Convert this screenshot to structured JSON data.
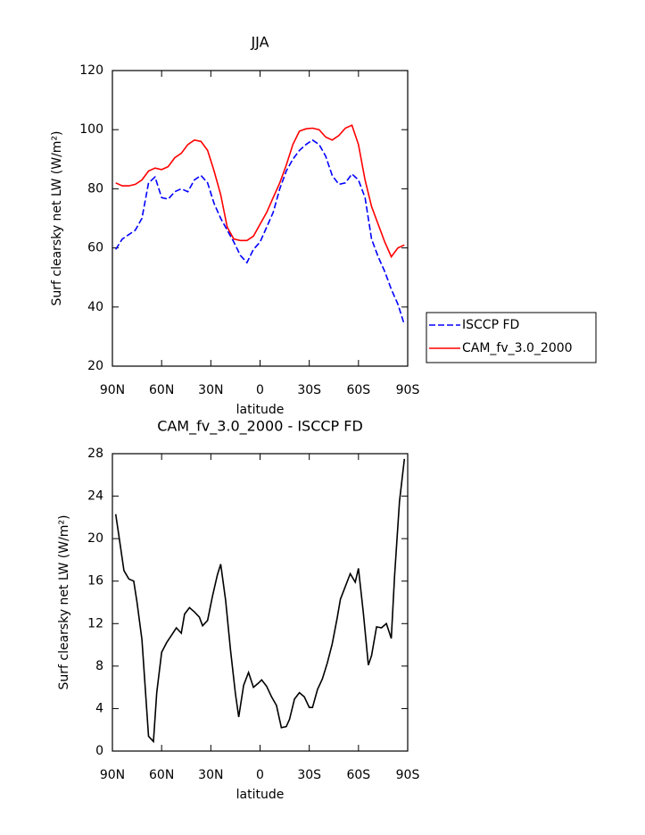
{
  "chart_data": [
    {
      "type": "line",
      "title": "JJA",
      "xlabel": "latitude",
      "ylabel": "Surf clearsky net LW (W/m²)",
      "x": [
        88,
        84,
        80,
        76,
        72,
        68,
        64,
        60,
        56,
        52,
        48,
        44,
        40,
        36,
        32,
        28,
        24,
        20,
        16,
        12,
        8,
        4,
        0,
        -4,
        -8,
        -12,
        -16,
        -20,
        -24,
        -28,
        -32,
        -36,
        -40,
        -44,
        -48,
        -52,
        -56,
        -60,
        -64,
        -68,
        -72,
        -76,
        -80,
        -84,
        -88
      ],
      "series": [
        {
          "name": "ISCCP FD",
          "color": "#0000ff",
          "dash": true,
          "values": [
            59.5,
            63,
            64.5,
            66,
            70,
            82,
            84,
            77,
            76.5,
            79,
            80,
            79,
            83,
            84.5,
            82,
            75,
            70,
            66,
            62,
            57.5,
            55,
            59.5,
            62,
            67,
            72,
            80,
            86,
            90,
            93,
            95,
            96.5,
            95,
            91,
            84.5,
            81.5,
            82,
            85,
            83,
            77,
            63,
            57,
            52,
            46,
            41,
            34
          ]
        },
        {
          "name": "CAM_fv_3.0_2000",
          "color": "#ff0000",
          "dash": false,
          "values": [
            82,
            81,
            81,
            81.5,
            83,
            86,
            87,
            86.5,
            87.5,
            90.5,
            92,
            95,
            96.5,
            96,
            93,
            86,
            78,
            67,
            63,
            62.5,
            62.5,
            64,
            68,
            72,
            77,
            82,
            88,
            95,
            99.5,
            100.3,
            100.5,
            100,
            97.5,
            96.5,
            98,
            100.5,
            101.5,
            95,
            83,
            74,
            68,
            62,
            57,
            60,
            61
          ]
        }
      ],
      "xlim": [
        90,
        -90
      ],
      "xticks": [
        {
          "value": 90,
          "label": "90N"
        },
        {
          "value": 60,
          "label": "60N"
        },
        {
          "value": 30,
          "label": "30N"
        },
        0,
        {
          "value": -30,
          "label": "30S"
        },
        {
          "value": -60,
          "label": "60S"
        },
        {
          "value": -90,
          "label": "90S"
        }
      ],
      "ylim": [
        20,
        120
      ],
      "yticks": [
        20,
        40,
        60,
        80,
        100,
        120
      ],
      "grid": false,
      "legend": "right"
    },
    {
      "type": "line",
      "title": "CAM_fv_3.0_2000 - ISCCP FD",
      "xlabel": "latitude",
      "ylabel": "Surf clearsky net LW (W/m²)",
      "x": [
        88,
        86,
        83,
        80,
        77,
        75,
        72,
        68,
        65,
        63,
        60,
        57,
        54,
        51,
        48,
        46,
        43,
        40,
        37,
        35,
        32,
        29,
        26,
        24,
        21,
        18,
        15,
        13,
        10,
        7,
        4,
        1,
        -1,
        -4,
        -7,
        -10,
        -13,
        -16,
        -18,
        -21,
        -24,
        -27,
        -30,
        -32,
        -35,
        -38,
        -41,
        -44,
        -47,
        -49,
        -52,
        -55,
        -58,
        -60,
        -63,
        -66,
        -68,
        -71,
        -74,
        -77,
        -80,
        -82,
        -85,
        -88
      ],
      "series": [
        {
          "color": "#000000",
          "dash": false,
          "values": [
            22.3,
            20.2,
            17,
            16.2,
            16,
            14,
            10.5,
            1.4,
            0.9,
            5.5,
            9.3,
            10.2,
            10.9,
            11.6,
            11.1,
            12.9,
            13.5,
            13.1,
            12.6,
            11.8,
            12.3,
            14.6,
            16.6,
            17.6,
            14.2,
            9.5,
            5.4,
            3.2,
            6.2,
            7.4,
            6,
            6.4,
            6.7,
            6.1,
            5.1,
            4.3,
            2.2,
            2.3,
            3,
            4.9,
            5.5,
            5.1,
            4.1,
            4.1,
            5.8,
            6.8,
            8.3,
            10.1,
            12.5,
            14.3,
            15.5,
            16.7,
            15.9,
            17.2,
            13,
            8.1,
            9,
            11.7,
            11.6,
            12,
            10.6,
            16.5,
            23.5,
            27.5
          ]
        }
      ],
      "xlim": [
        90,
        -90
      ],
      "xticks": [
        {
          "value": 90,
          "label": "90N"
        },
        {
          "value": 60,
          "label": "60N"
        },
        {
          "value": 30,
          "label": "30N"
        },
        0,
        {
          "value": -30,
          "label": "30S"
        },
        {
          "value": -60,
          "label": "60S"
        },
        {
          "value": -90,
          "label": "90S"
        }
      ],
      "ylim": [
        0,
        28
      ],
      "yticks": [
        0,
        4,
        8,
        12,
        16,
        20,
        24,
        28
      ],
      "grid": false
    }
  ]
}
